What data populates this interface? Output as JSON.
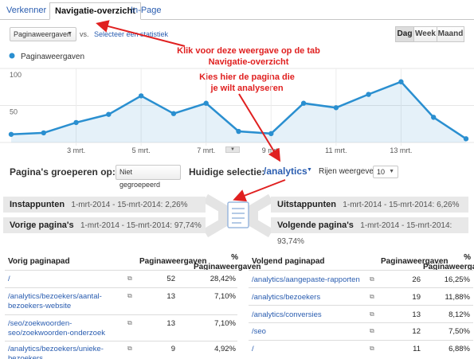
{
  "tabs": [
    "Verkenner",
    "Navigatie-overzicht",
    "In-Page"
  ],
  "controls": {
    "metric_select": "Paginaweergaven",
    "vs_label": "vs.",
    "compare_link": "Selecteer een statistiek",
    "period_buttons": [
      "Dag",
      "Week",
      "Maand"
    ],
    "period_selected": "Dag"
  },
  "annotations": {
    "tab_hint": "Klik voor deze weergave op de tab Navigatie-overzicht",
    "page_hint": "Kies hier de pagina die je wilt analyseren"
  },
  "chart_data": {
    "type": "line",
    "legend": "Paginaweergaven",
    "series": [
      {
        "name": "Paginaweergaven",
        "values": [
          11,
          13,
          27,
          38,
          63,
          39,
          53,
          15,
          12,
          53,
          47,
          65,
          82,
          34,
          5
        ]
      }
    ],
    "x_tick_labels": [
      "3 mrt.",
      "5 mrt.",
      "7 mrt.",
      "9 mrt.",
      "11 mrt.",
      "13 mrt."
    ],
    "y_tick_labels": [
      "100",
      "50"
    ],
    "ylim": [
      0,
      100
    ],
    "grid": true,
    "color": "#2a8fd0"
  },
  "grouping": {
    "label": "Pagina's groeperen op:",
    "select": "Niet gegroepeerd",
    "current_label": "Huidige selectie:",
    "current_value": "/analytics",
    "rows_label": "Rijen weergeven:",
    "rows_value": "10"
  },
  "flow": {
    "entrances": {
      "label": "Instappunten",
      "text": "1-mrt-2014 - 15-mrt-2014: 2,26%"
    },
    "previous": {
      "label": "Vorige pagina's",
      "text": "1-mrt-2014 - 15-mrt-2014: 97,74%"
    },
    "exits": {
      "label": "Uitstappunten",
      "text": "1-mrt-2014 - 15-mrt-2014: 6,26%"
    },
    "next": {
      "label": "Volgende pagina's",
      "text": "1-mrt-2014 - 15-mrt-2014: 93,74%"
    }
  },
  "prev_table": {
    "col_path": "Vorig paginapad",
    "col_views": "Paginaweergaven",
    "col_pct": "% Paginaweergaven",
    "rows": [
      {
        "path": "/",
        "views": "52",
        "pct": "28,42%"
      },
      {
        "path": "/analytics/bezoekers/aantal-bezoekers-website",
        "views": "13",
        "pct": "7,10%"
      },
      {
        "path": "/seo/zoekwoorden-seo/zoekwoorden-onderzoek",
        "views": "13",
        "pct": "7,10%"
      },
      {
        "path": "/analytics/bezoekers/unieke-bezoekers",
        "views": "9",
        "pct": "4,92%"
      }
    ]
  },
  "next_table": {
    "col_path": "Volgend paginapad",
    "col_views": "Paginaweergaven",
    "col_pct": "% Paginaweergaven",
    "rows": [
      {
        "path": "/analytics/aangepaste-rapporten",
        "views": "26",
        "pct": "16,25%"
      },
      {
        "path": "/analytics/bezoekers",
        "views": "19",
        "pct": "11,88%"
      },
      {
        "path": "/analytics/conversies",
        "views": "13",
        "pct": "8,12%"
      },
      {
        "path": "/seo",
        "views": "12",
        "pct": "7,50%"
      },
      {
        "path": "/",
        "views": "11",
        "pct": "6,88%"
      }
    ]
  }
}
